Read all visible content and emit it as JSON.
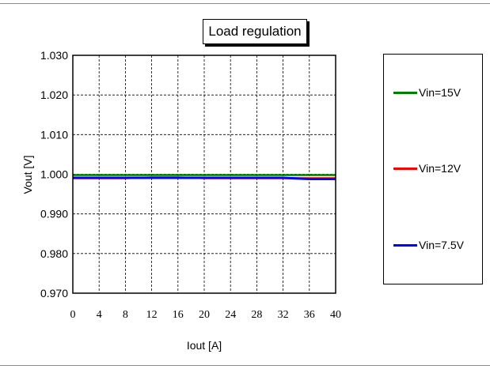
{
  "chart_data": {
    "type": "line",
    "title": "Load regulation",
    "xlabel": "Iout [A]",
    "ylabel": "Vout [V]",
    "x_ticks": [
      "0",
      "4",
      "8",
      "12",
      "16",
      "20",
      "24",
      "28",
      "32",
      "36",
      "40"
    ],
    "y_ticks": [
      "1.030",
      "1.020",
      "1.010",
      "1.000",
      "0.990",
      "0.980",
      "0.970"
    ],
    "xlim": [
      0,
      40
    ],
    "ylim": [
      0.97,
      1.03
    ],
    "grid": "dashed",
    "legend_position": "right",
    "series": [
      {
        "name": "Vin=15V",
        "color": "#008000",
        "x": [
          0,
          4,
          8,
          12,
          16,
          20,
          24,
          28,
          32,
          36,
          40
        ],
        "y": [
          0.9998,
          0.9998,
          0.9998,
          0.9998,
          0.9998,
          0.9998,
          0.9998,
          0.9998,
          0.9998,
          0.9998,
          0.9998
        ]
      },
      {
        "name": "Vin=12V",
        "color": "#ff0000",
        "x": [
          0,
          4,
          8,
          12,
          16,
          20,
          24,
          28,
          32,
          36,
          40
        ],
        "y": [
          0.999,
          0.999,
          0.999,
          0.9992,
          0.9992,
          0.999,
          0.999,
          0.999,
          0.999,
          0.999,
          0.999
        ]
      },
      {
        "name": "Vin=7.5V",
        "color": "#0000ff",
        "x": [
          0,
          4,
          8,
          12,
          16,
          20,
          24,
          28,
          32,
          36,
          40
        ],
        "y": [
          0.9991,
          0.9991,
          0.9991,
          0.9991,
          0.9991,
          0.9991,
          0.9991,
          0.9991,
          0.9991,
          0.9988,
          0.9988
        ]
      }
    ]
  }
}
